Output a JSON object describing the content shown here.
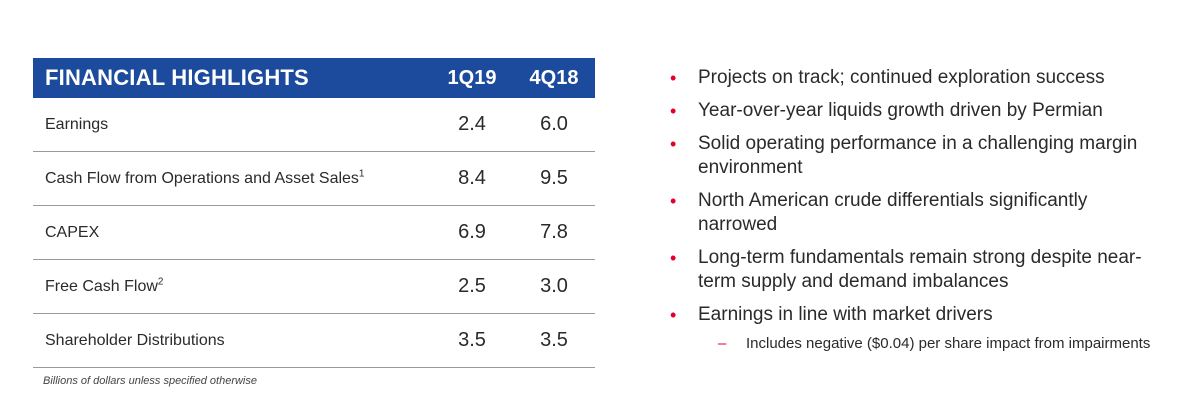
{
  "table": {
    "header": {
      "title": "FINANCIAL HIGHLIGHTS",
      "col1": "1Q19",
      "col2": "4Q18"
    },
    "rows": [
      {
        "label": "Earnings",
        "sup": "",
        "q1": "2.4",
        "q2": "6.0"
      },
      {
        "label": "Cash Flow from Operations and Asset Sales",
        "sup": "1",
        "q1": "8.4",
        "q2": "9.5"
      },
      {
        "label": "CAPEX",
        "sup": "",
        "q1": "6.9",
        "q2": "7.8"
      },
      {
        "label": "Free Cash Flow",
        "sup": "2",
        "q1": "2.5",
        "q2": "3.0"
      },
      {
        "label": "Shareholder Distributions",
        "sup": "",
        "q1": "3.5",
        "q2": "3.5"
      }
    ],
    "footnote": "Billions of dollars unless specified otherwise"
  },
  "bullets": [
    "Projects on track; continued exploration success",
    "Year-over-year liquids growth driven by Permian",
    "Solid operating performance in a challenging margin environment",
    "North American crude differentials significantly narrowed",
    "Long-term fundamentals remain strong despite near-term supply and demand imbalances",
    "Earnings in line with market drivers"
  ],
  "sub_bullet": "Includes negative ($0.04) per share impact from impairments",
  "colors": {
    "header_bg": "#1c4a9c",
    "bullet_accent": "#e4002b"
  }
}
